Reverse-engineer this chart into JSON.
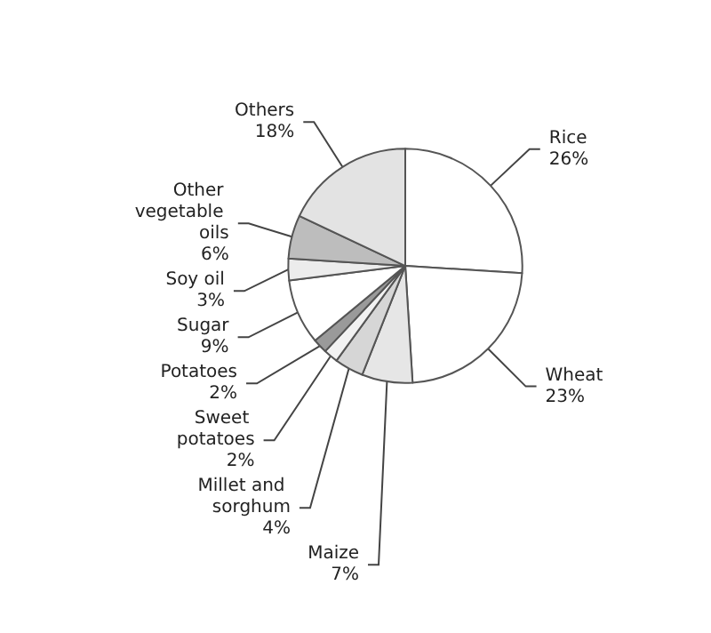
{
  "chart_data": {
    "type": "pie",
    "categories": [
      "Rice",
      "Wheat",
      "Maize",
      "Millet and sorghum",
      "Sweet potatoes",
      "Potatoes",
      "Sugar",
      "Soy oil",
      "Other vegetable oils",
      "Others"
    ],
    "values": [
      26,
      23,
      7,
      4,
      2,
      2,
      9,
      3,
      6,
      18
    ],
    "value_labels": [
      "26%",
      "23%",
      "7%",
      "4%",
      "2%",
      "2%",
      "9%",
      "3%",
      "6%",
      "18%"
    ],
    "colors": [
      "#ffffff",
      "#ffffff",
      "#e6e6e6",
      "#d6d6d6",
      "#f2f2f2",
      "#9a9a9a",
      "#ffffff",
      "#ececec",
      "#bdbdbd",
      "#e3e3e3"
    ]
  }
}
